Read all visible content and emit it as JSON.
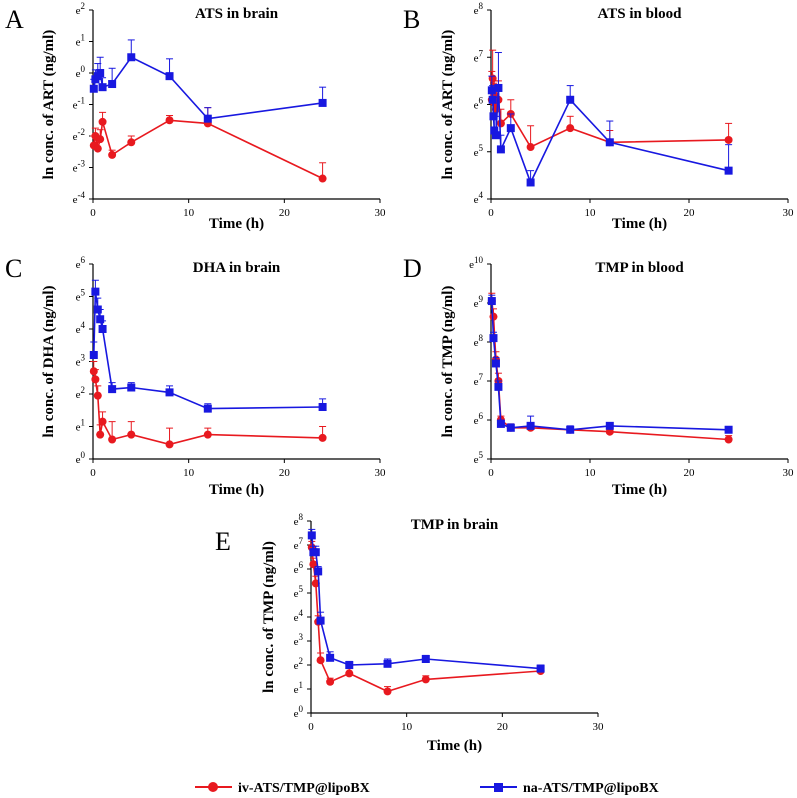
{
  "chart_data": [
    {
      "panel": "A",
      "type": "line",
      "title": "ATS in brain",
      "xlabel": "Time (h)",
      "ylabel": "ln conc. of ART (ng/ml)",
      "xlim": [
        0,
        30
      ],
      "xticks": [
        0,
        10,
        20,
        30
      ],
      "ylim": [
        -4,
        2
      ],
      "ytick_labels": [
        {
          "value": -4,
          "base": "e",
          "exp": "-4"
        },
        {
          "value": -3,
          "base": "e",
          "exp": "-3"
        },
        {
          "value": -2,
          "base": "e",
          "exp": "-2"
        },
        {
          "value": -1,
          "base": "e",
          "exp": "-1"
        },
        {
          "value": 0,
          "base": "e",
          "exp": "0"
        },
        {
          "value": 1,
          "base": "e",
          "exp": "1"
        },
        {
          "value": 2,
          "base": "e",
          "exp": "2"
        }
      ],
      "series": [
        {
          "name": "iv-ATS/TMP@lipoBX",
          "color": "#e8191f",
          "marker": "circle",
          "x": [
            0.083,
            0.25,
            0.5,
            0.75,
            1,
            2,
            4,
            8,
            12,
            24
          ],
          "y": [
            -2.3,
            -2.0,
            -2.4,
            -2.1,
            -1.55,
            -2.6,
            -2.2,
            -1.5,
            -1.6,
            -3.35
          ],
          "err": [
            0.3,
            0.25,
            0.2,
            0.3,
            0.3,
            0.15,
            0.2,
            0.15,
            0.5,
            0.5
          ]
        },
        {
          "name": "na-ATS/TMP@lipoBX",
          "color": "#1818e0",
          "marker": "square",
          "x": [
            0.083,
            0.25,
            0.5,
            0.75,
            1,
            2,
            4,
            8,
            12,
            24
          ],
          "y": [
            -0.5,
            -0.2,
            -0.1,
            0.0,
            -0.45,
            -0.35,
            0.5,
            -0.1,
            -1.45,
            -0.95
          ],
          "err": [
            0.3,
            0.3,
            0.4,
            0.5,
            0.3,
            0.5,
            0.55,
            0.55,
            0.35,
            0.5
          ]
        }
      ]
    },
    {
      "panel": "B",
      "type": "line",
      "title": "ATS in blood",
      "xlabel": "Time (h)",
      "ylabel": "ln conc. of ART (ng/ml)",
      "xlim": [
        0,
        30
      ],
      "xticks": [
        0,
        10,
        20,
        30
      ],
      "ylim": [
        4,
        8
      ],
      "ytick_labels": [
        {
          "value": 4,
          "base": "e",
          "exp": "4"
        },
        {
          "value": 5,
          "base": "e",
          "exp": "5"
        },
        {
          "value": 6,
          "base": "e",
          "exp": "6"
        },
        {
          "value": 7,
          "base": "e",
          "exp": "7"
        },
        {
          "value": 8,
          "base": "e",
          "exp": "8"
        }
      ],
      "series": [
        {
          "name": "iv-ATS/TMP@lipoBX",
          "color": "#e8191f",
          "marker": "circle",
          "x": [
            0.083,
            0.167,
            0.25,
            0.33,
            0.5,
            0.75,
            1,
            2,
            4,
            8,
            12,
            24
          ],
          "y": [
            6.1,
            6.55,
            6.05,
            6.2,
            5.9,
            6.1,
            5.6,
            5.8,
            5.1,
            5.5,
            5.2,
            5.25
          ],
          "err": [
            0.6,
            0.6,
            0.4,
            0.3,
            0.4,
            0.4,
            0.3,
            0.3,
            0.45,
            0.25,
            0.25,
            0.35
          ]
        },
        {
          "name": "na-ATS/TMP@lipoBX",
          "color": "#1818e0",
          "marker": "square",
          "x": [
            0.083,
            0.167,
            0.25,
            0.33,
            0.5,
            0.75,
            1,
            2,
            4,
            8,
            12,
            24
          ],
          "y": [
            6.3,
            6.1,
            5.75,
            5.45,
            5.35,
            6.35,
            5.05,
            5.5,
            4.35,
            6.1,
            5.2,
            4.6
          ],
          "err": [
            0.3,
            0.3,
            0.4,
            0.3,
            0.4,
            0.75,
            0.3,
            0.3,
            0.25,
            0.3,
            0.45,
            0.55
          ]
        }
      ]
    },
    {
      "panel": "C",
      "type": "line",
      "title": "DHA in brain",
      "xlabel": "Time (h)",
      "ylabel": "ln conc. of DHA (ng/ml)",
      "xlim": [
        0,
        30
      ],
      "xticks": [
        0,
        10,
        20,
        30
      ],
      "ylim": [
        0,
        6
      ],
      "ytick_labels": [
        {
          "value": 0,
          "base": "e",
          "exp": "0"
        },
        {
          "value": 1,
          "base": "e",
          "exp": "1"
        },
        {
          "value": 2,
          "base": "e",
          "exp": "2"
        },
        {
          "value": 3,
          "base": "e",
          "exp": "3"
        },
        {
          "value": 4,
          "base": "e",
          "exp": "4"
        },
        {
          "value": 5,
          "base": "e",
          "exp": "5"
        },
        {
          "value": 6,
          "base": "e",
          "exp": "6"
        }
      ],
      "series": [
        {
          "name": "iv-ATS/TMP@lipoBX",
          "color": "#e8191f",
          "marker": "circle",
          "x": [
            0.083,
            0.25,
            0.5,
            0.75,
            1,
            2,
            4,
            8,
            12,
            24
          ],
          "y": [
            2.7,
            2.45,
            1.95,
            0.75,
            1.15,
            0.6,
            0.75,
            0.45,
            0.75,
            0.65
          ],
          "err": [
            0.3,
            0.3,
            0.3,
            0.3,
            0.3,
            0.55,
            0.4,
            0.5,
            0.2,
            0.35
          ]
        },
        {
          "name": "na-ATS/TMP@lipoBX",
          "color": "#1818e0",
          "marker": "square",
          "x": [
            0.083,
            0.25,
            0.5,
            0.75,
            1,
            2,
            4,
            8,
            12,
            24
          ],
          "y": [
            3.2,
            5.15,
            4.6,
            4.3,
            4.0,
            2.15,
            2.2,
            2.05,
            1.55,
            1.6
          ],
          "err": [
            0.4,
            0.35,
            0.35,
            0.3,
            0.25,
            0.2,
            0.15,
            0.2,
            0.15,
            0.25
          ]
        }
      ]
    },
    {
      "panel": "D",
      "type": "line",
      "title": "TMP in blood",
      "xlabel": "Time (h)",
      "ylabel": "ln conc. of TMP (ng/ml)",
      "xlim": [
        0,
        30
      ],
      "xticks": [
        0,
        10,
        20,
        30
      ],
      "ylim": [
        5,
        10
      ],
      "ytick_labels": [
        {
          "value": 5,
          "base": "e",
          "exp": "5"
        },
        {
          "value": 6,
          "base": "e",
          "exp": "6"
        },
        {
          "value": 7,
          "base": "e",
          "exp": "7"
        },
        {
          "value": 8,
          "base": "e",
          "exp": "8"
        },
        {
          "value": 9,
          "base": "e",
          "exp": "9"
        },
        {
          "value": 10,
          "base": "e",
          "exp": "10"
        }
      ],
      "series": [
        {
          "name": "iv-ATS/TMP@lipoBX",
          "color": "#e8191f",
          "marker": "circle",
          "x": [
            0.083,
            0.25,
            0.5,
            0.75,
            1,
            2,
            4,
            8,
            12,
            24
          ],
          "y": [
            9.05,
            8.65,
            7.55,
            7.0,
            6.0,
            5.8,
            5.8,
            5.75,
            5.7,
            5.5
          ],
          "err": [
            0.2,
            0.2,
            0.2,
            0.2,
            0.1,
            0.1,
            0.1,
            0.05,
            0.1,
            0.1
          ]
        },
        {
          "name": "na-ATS/TMP@lipoBX",
          "color": "#1818e0",
          "marker": "square",
          "x": [
            0.083,
            0.25,
            0.5,
            0.75,
            1,
            2,
            4,
            8,
            12,
            24
          ],
          "y": [
            9.05,
            8.1,
            7.45,
            6.85,
            5.9,
            5.8,
            5.85,
            5.75,
            5.85,
            5.75
          ],
          "err": [
            0.15,
            0.15,
            0.15,
            0.15,
            0.1,
            0.1,
            0.25,
            0.1,
            0.05,
            0.05
          ]
        }
      ]
    },
    {
      "panel": "E",
      "type": "line",
      "title": "TMP in brain",
      "xlabel": "Time (h)",
      "ylabel": "ln conc. of TMP (ng/ml)",
      "xlim": [
        0,
        30
      ],
      "xticks": [
        0,
        10,
        20,
        30
      ],
      "ylim": [
        0,
        8
      ],
      "ytick_labels": [
        {
          "value": 0,
          "base": "e",
          "exp": "0"
        },
        {
          "value": 1,
          "base": "e",
          "exp": "1"
        },
        {
          "value": 2,
          "base": "e",
          "exp": "2"
        },
        {
          "value": 3,
          "base": "e",
          "exp": "3"
        },
        {
          "value": 4,
          "base": "e",
          "exp": "4"
        },
        {
          "value": 5,
          "base": "e",
          "exp": "5"
        },
        {
          "value": 6,
          "base": "e",
          "exp": "6"
        },
        {
          "value": 7,
          "base": "e",
          "exp": "7"
        },
        {
          "value": 8,
          "base": "e",
          "exp": "8"
        }
      ],
      "series": [
        {
          "name": "iv-ATS/TMP@lipoBX",
          "color": "#e8191f",
          "marker": "circle",
          "x": [
            0.083,
            0.25,
            0.5,
            0.75,
            1,
            2,
            4,
            8,
            12,
            24
          ],
          "y": [
            6.9,
            6.2,
            5.4,
            3.8,
            2.2,
            1.3,
            1.65,
            0.9,
            1.4,
            1.75
          ],
          "err": [
            0.25,
            0.25,
            0.3,
            0.25,
            0.3,
            0.15,
            0.2,
            0.2,
            0.15,
            0.15
          ]
        },
        {
          "name": "na-ATS/TMP@lipoBX",
          "color": "#1818e0",
          "marker": "square",
          "x": [
            0.083,
            0.25,
            0.5,
            0.75,
            1,
            2,
            4,
            8,
            12,
            24
          ],
          "y": [
            7.4,
            6.7,
            6.7,
            5.9,
            3.85,
            2.3,
            2.0,
            2.05,
            2.25,
            1.85
          ],
          "err": [
            0.25,
            0.25,
            0.25,
            0.2,
            0.35,
            0.25,
            0.15,
            0.2,
            0.15,
            0.15
          ]
        }
      ]
    }
  ],
  "legend": {
    "position": "bottom",
    "items": [
      {
        "label": "iv-ATS/TMP@lipoBX",
        "color": "#e8191f",
        "marker": "circle"
      },
      {
        "label": "na-ATS/TMP@lipoBX",
        "color": "#1818e0",
        "marker": "square"
      }
    ]
  }
}
